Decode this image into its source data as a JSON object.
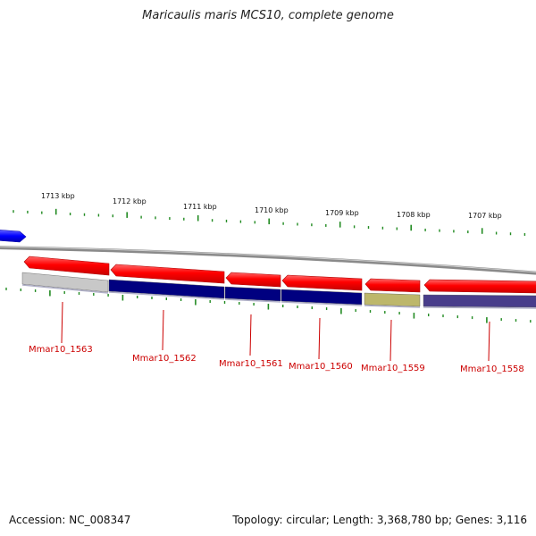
{
  "title": "Maricaulis maris MCS10, complete genome",
  "footer": {
    "accession": "Accession: NC_008347",
    "summary": "Topology: circular; Length: 3,368,780 bp; Genes: 3,116"
  },
  "scale_labels": [
    "1713 kbp",
    "1712 kbp",
    "1711 kbp",
    "1710 kbp",
    "1709 kbp",
    "1708 kbp",
    "1707 kbp"
  ],
  "genes": [
    {
      "name": "Mmar10_1563",
      "color": "#c8c8c8"
    },
    {
      "name": "Mmar10_1562",
      "color": "#000080"
    },
    {
      "name": "Mmar10_1561",
      "color": "#000080"
    },
    {
      "name": "Mmar10_1560",
      "color": "#000080"
    },
    {
      "name": "Mmar10_1559",
      "color": "#bdb76b"
    },
    {
      "name": "Mmar10_1558",
      "color": "#483d8b"
    }
  ],
  "colors": {
    "cds": "#ff0000",
    "upstream_feature": "#0000ff",
    "backbone": "#888888",
    "tick": "#228b22",
    "label": "#cc0000"
  }
}
